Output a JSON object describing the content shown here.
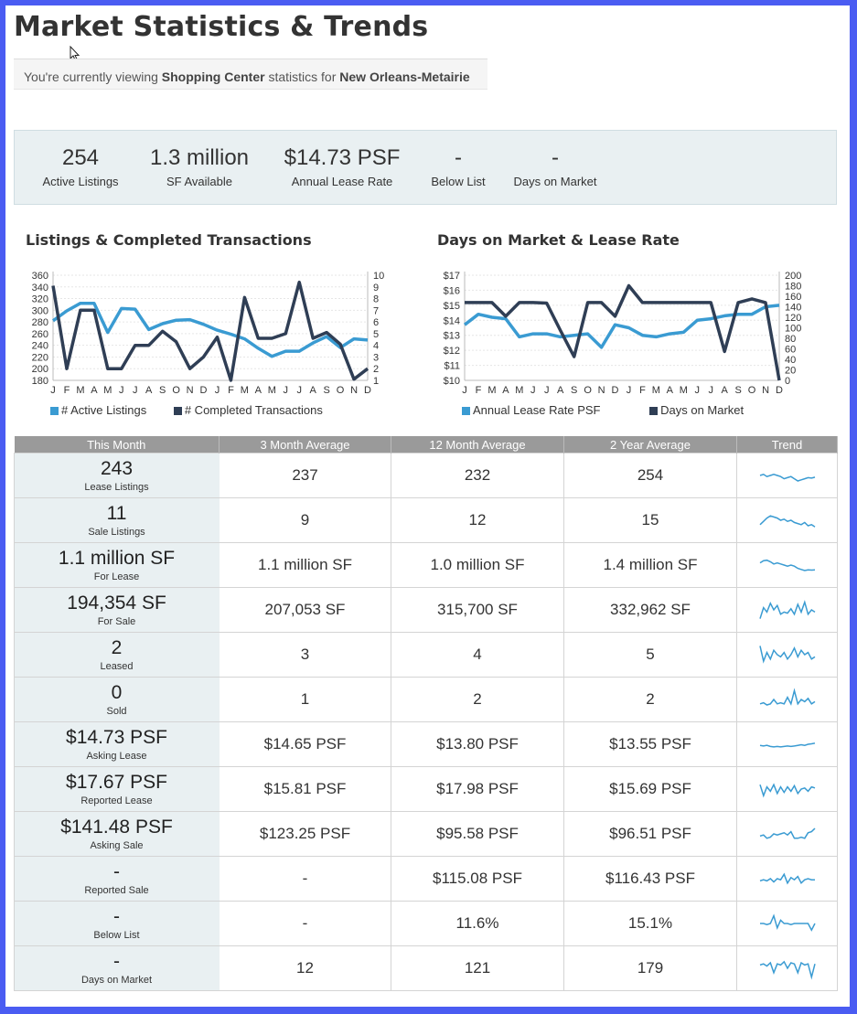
{
  "page_title": "Market Statistics & Trends",
  "viewing": {
    "prefix": "You're currently viewing ",
    "property_type": "Shopping Center",
    "middle": " statistics for ",
    "market": "New Orleans-Metairie"
  },
  "summary": [
    {
      "value": "254",
      "label": "Active Listings"
    },
    {
      "value": "1.3 million",
      "label": "SF Available"
    },
    {
      "value": "$14.73 PSF",
      "label": "Annual Lease Rate"
    },
    {
      "value": "-",
      "label": "Below List"
    },
    {
      "value": "-",
      "label": "Days on Market"
    }
  ],
  "colors": {
    "light_series": "#3a9bd2",
    "dark_series": "#2f3e55",
    "header_bg": "#9a9a9a",
    "first_col_bg": "#e9f0f2",
    "spark": "#3a9bd2"
  },
  "chart_data": [
    {
      "type": "line",
      "title": "Listings & Completed Transactions",
      "x": [
        "J",
        "F",
        "M",
        "A",
        "M",
        "J",
        "J",
        "A",
        "S",
        "O",
        "N",
        "D",
        "J",
        "F",
        "M",
        "A",
        "M",
        "J",
        "J",
        "A",
        "S",
        "O",
        "N",
        "D"
      ],
      "left_axis": {
        "ticks": [
          "360",
          "340",
          "320",
          "300",
          "280",
          "260",
          "240",
          "220",
          "200",
          "180"
        ],
        "range": [
          180,
          360
        ]
      },
      "right_axis": {
        "ticks": [
          "10",
          "9",
          "8",
          "7",
          "6",
          "5",
          "4",
          "3",
          "2",
          "1"
        ],
        "range": [
          1,
          10
        ]
      },
      "series": [
        {
          "name": "# Active Listings",
          "axis": "left",
          "color": "#3a9bd2",
          "values": [
            282,
            299,
            312,
            312,
            262,
            303,
            302,
            267,
            277,
            283,
            284,
            276,
            266,
            259,
            251,
            235,
            221,
            230,
            230,
            244,
            255,
            236,
            251,
            249
          ]
        },
        {
          "name": "# Completed Transactions",
          "axis": "right",
          "color": "#2f3e55",
          "values": [
            9.1,
            2,
            7,
            7,
            2,
            2,
            4,
            4,
            5.2,
            4.3,
            2,
            3,
            4.7,
            1,
            8.1,
            4.6,
            4.6,
            5,
            9.4,
            4.6,
            5.1,
            4.1,
            1.1,
            2
          ]
        }
      ],
      "legend": "bottom",
      "grid": true
    },
    {
      "type": "line",
      "title": "Days on Market & Lease Rate",
      "x": [
        "J",
        "F",
        "M",
        "A",
        "M",
        "J",
        "J",
        "A",
        "S",
        "O",
        "N",
        "D",
        "J",
        "F",
        "M",
        "A",
        "M",
        "J",
        "J",
        "A",
        "S",
        "O",
        "N",
        "D"
      ],
      "left_axis": {
        "ticks": [
          "$17",
          "$16",
          "$15",
          "$14",
          "$13",
          "$12",
          "$11",
          "$10"
        ],
        "range": [
          10,
          17
        ]
      },
      "right_axis": {
        "ticks": [
          "200",
          "180",
          "160",
          "140",
          "120",
          "100",
          "80",
          "60",
          "40",
          "20",
          "0"
        ],
        "range": [
          0,
          200
        ]
      },
      "series": [
        {
          "name": "Annual Lease Rate PSF",
          "axis": "left",
          "color": "#3a9bd2",
          "values": [
            13.7,
            14.4,
            14.2,
            14.1,
            12.9,
            13.1,
            13.1,
            12.9,
            13.0,
            13.1,
            12.2,
            13.7,
            13.5,
            13.0,
            12.9,
            13.1,
            13.2,
            14.0,
            14.1,
            14.3,
            14.4,
            14.4,
            14.9,
            15.0
          ]
        },
        {
          "name": "Days on Market",
          "axis": "right",
          "color": "#2f3e55",
          "values": [
            148,
            148,
            148,
            122,
            148,
            148,
            147,
            95,
            45,
            148,
            148,
            122,
            180,
            148,
            148,
            148,
            148,
            148,
            148,
            55,
            148,
            155,
            148,
            0
          ]
        }
      ],
      "legend": "bottom",
      "grid": true
    }
  ],
  "table": {
    "headers": [
      "This Month",
      "3 Month Average",
      "12 Month Average",
      "2 Year Average",
      "Trend"
    ],
    "rows": [
      {
        "value": "243",
        "label": "Lease Listings",
        "m3": "237",
        "m12": "232",
        "y2": "254",
        "trend": [
          0.5,
          0.55,
          0.45,
          0.5,
          0.55,
          0.5,
          0.45,
          0.35,
          0.4,
          0.45,
          0.35,
          0.25,
          0.3,
          0.35,
          0.4,
          0.38,
          0.42
        ]
      },
      {
        "value": "11",
        "label": "Sale Listings",
        "m3": "9",
        "m12": "12",
        "y2": "15",
        "trend": [
          0.3,
          0.45,
          0.6,
          0.7,
          0.65,
          0.6,
          0.5,
          0.55,
          0.45,
          0.5,
          0.4,
          0.35,
          0.3,
          0.4,
          0.25,
          0.3,
          0.2
        ]
      },
      {
        "value": "1.1 million SF",
        "label": "For Lease",
        "m3": "1.1 million SF",
        "m12": "1.0 million SF",
        "y2": "1.4 million SF",
        "trend": [
          0.6,
          0.7,
          0.72,
          0.65,
          0.55,
          0.6,
          0.55,
          0.5,
          0.45,
          0.5,
          0.45,
          0.35,
          0.3,
          0.25,
          0.28,
          0.27,
          0.28
        ]
      },
      {
        "value": "194,354 SF",
        "label": "For Sale",
        "m3": "207,053 SF",
        "m12": "315,700 SF",
        "y2": "332,962 SF",
        "trend": [
          0.1,
          0.6,
          0.4,
          0.8,
          0.5,
          0.7,
          0.3,
          0.4,
          0.35,
          0.55,
          0.3,
          0.75,
          0.4,
          0.85,
          0.3,
          0.5,
          0.4
        ]
      },
      {
        "value": "2",
        "label": "Leased",
        "m3": "3",
        "m12": "4",
        "y2": "5",
        "trend": [
          0.9,
          0.2,
          0.6,
          0.3,
          0.7,
          0.5,
          0.4,
          0.6,
          0.3,
          0.5,
          0.8,
          0.4,
          0.7,
          0.5,
          0.6,
          0.3,
          0.4
        ]
      },
      {
        "value": "0",
        "label": "Sold",
        "m3": "1",
        "m12": "2",
        "y2": "2",
        "trend": [
          0.3,
          0.35,
          0.25,
          0.3,
          0.5,
          0.3,
          0.35,
          0.3,
          0.6,
          0.3,
          0.9,
          0.3,
          0.5,
          0.4,
          0.55,
          0.3,
          0.4
        ]
      },
      {
        "value": "$14.73 PSF",
        "label": "Asking Lease",
        "m3": "$14.65 PSF",
        "m12": "$13.80 PSF",
        "y2": "$13.55 PSF",
        "trend": [
          0.45,
          0.42,
          0.45,
          0.4,
          0.38,
          0.4,
          0.38,
          0.4,
          0.42,
          0.4,
          0.42,
          0.45,
          0.48,
          0.45,
          0.5,
          0.52,
          0.55
        ]
      },
      {
        "value": "$17.67 PSF",
        "label": "Reported Lease",
        "m3": "$15.81 PSF",
        "m12": "$17.98 PSF",
        "y2": "$15.69 PSF",
        "trend": [
          0.7,
          0.2,
          0.6,
          0.4,
          0.7,
          0.3,
          0.6,
          0.35,
          0.6,
          0.4,
          0.65,
          0.3,
          0.5,
          0.55,
          0.4,
          0.6,
          0.55
        ]
      },
      {
        "value": "$141.48 PSF",
        "label": "Asking Sale",
        "m3": "$123.25 PSF",
        "m12": "$95.58 PSF",
        "y2": "$96.51 PSF",
        "trend": [
          0.4,
          0.45,
          0.3,
          0.35,
          0.5,
          0.45,
          0.5,
          0.55,
          0.45,
          0.6,
          0.3,
          0.3,
          0.35,
          0.3,
          0.55,
          0.6,
          0.75
        ]
      },
      {
        "value": "-",
        "label": "Reported Sale",
        "m3": "-",
        "m12": "$115.08 PSF",
        "y2": "$116.43 PSF",
        "trend": [
          0.4,
          0.45,
          0.4,
          0.5,
          0.35,
          0.5,
          0.45,
          0.7,
          0.3,
          0.55,
          0.45,
          0.6,
          0.3,
          0.45,
          0.5,
          0.45,
          0.45
        ]
      },
      {
        "value": "-",
        "label": "Below List",
        "m3": "-",
        "m12": "11.6%",
        "y2": "15.1%",
        "trend": [
          0.5,
          0.5,
          0.45,
          0.5,
          0.85,
          0.3,
          0.65,
          0.5,
          0.5,
          0.45,
          0.5,
          0.5,
          0.5,
          0.5,
          0.5,
          0.2,
          0.5
        ]
      },
      {
        "value": "-",
        "label": "Days on Market",
        "m3": "12",
        "m12": "121",
        "y2": "179",
        "trend": [
          0.65,
          0.7,
          0.6,
          0.75,
          0.3,
          0.7,
          0.65,
          0.8,
          0.5,
          0.75,
          0.7,
          0.3,
          0.75,
          0.65,
          0.7,
          0.1,
          0.7
        ]
      }
    ]
  }
}
